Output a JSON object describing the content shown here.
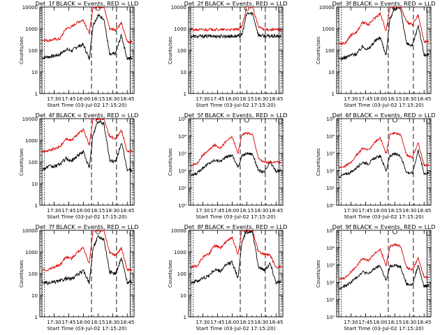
{
  "colors": {
    "events": "#000000",
    "lld": "#dd0000",
    "axis": "#000000"
  },
  "xlabel": "Start Time (03-Jul-02 17:15:20)",
  "ylabel": "Counts/sec",
  "xticks": [
    "17:30",
    "17:45",
    "18:00",
    "18:15",
    "18:30",
    "18:45"
  ],
  "chart_data": [
    {
      "type": "line",
      "title": "Det_1f BLACK = Events, RED = LLD",
      "y_scale": "log",
      "ylim": [
        1,
        10000
      ],
      "ytick_labels": [
        "1",
        "10",
        "100",
        "1000",
        "10000"
      ],
      "x": [
        "17:18",
        "17:24",
        "17:30",
        "17:36",
        "17:42",
        "17:48",
        "17:54",
        "18:00",
        "18:06",
        "18:10",
        "18:15",
        "18:21",
        "18:27",
        "18:33",
        "18:39",
        "18:45",
        "18:50"
      ],
      "series": [
        {
          "name": "BLACK = Events",
          "values": [
            45,
            50,
            55,
            65,
            110,
            95,
            150,
            180,
            40,
            1500,
            4000,
            3000,
            60,
            70,
            500,
            40,
            45
          ]
        },
        {
          "name": "RED = LLD",
          "values": [
            300,
            280,
            320,
            330,
            1000,
            1200,
            2000,
            2500,
            600,
            10000,
            10000,
            10000,
            1000,
            900,
            1800,
            250,
            250
          ]
        }
      ]
    },
    {
      "type": "line",
      "title": "Det_2f BLACK = Events, RED = LLD",
      "y_scale": "log",
      "ylim": [
        1,
        10000
      ],
      "ytick_labels": [
        "1",
        "10",
        "100",
        "1000",
        "10000"
      ],
      "x": [
        "17:18",
        "17:24",
        "17:30",
        "17:36",
        "17:42",
        "17:48",
        "17:54",
        "18:00",
        "18:06",
        "18:10",
        "18:15",
        "18:21",
        "18:27",
        "18:33",
        "18:39",
        "18:45",
        "18:50"
      ],
      "series": [
        {
          "name": "BLACK = Events",
          "values": [
            450,
            430,
            440,
            450,
            450,
            440,
            450,
            450,
            450,
            500,
            5000,
            5000,
            500,
            450,
            450,
            450,
            430
          ]
        },
        {
          "name": "RED = LLD",
          "values": [
            900,
            880,
            900,
            900,
            900,
            880,
            900,
            900,
            900,
            1200,
            10000,
            10000,
            1200,
            900,
            900,
            900,
            850
          ]
        }
      ]
    },
    {
      "type": "line",
      "title": "Det_3f BLACK = Events, RED = LLD",
      "y_scale": "log",
      "ylim": [
        1,
        10000
      ],
      "ytick_labels": [
        "1",
        "10",
        "100",
        "1000",
        "10000"
      ],
      "x": [
        "17:18",
        "17:24",
        "17:30",
        "17:36",
        "17:42",
        "17:48",
        "17:54",
        "18:00",
        "18:06",
        "18:10",
        "18:15",
        "18:21",
        "18:27",
        "18:33",
        "18:39",
        "18:45",
        "18:50"
      ],
      "series": [
        {
          "name": "BLACK = Events",
          "values": [
            40,
            45,
            60,
            70,
            150,
            110,
            250,
            400,
            60,
            3000,
            9000,
            8000,
            200,
            150,
            1500,
            60,
            60
          ]
        },
        {
          "name": "RED = LLD",
          "values": [
            200,
            210,
            500,
            700,
            2000,
            1500,
            3000,
            5000,
            800,
            10000,
            10000,
            10000,
            2000,
            1500,
            4000,
            250,
            250
          ]
        }
      ]
    },
    {
      "type": "line",
      "title": "Det_4f BLACK = Events, RED = LLD",
      "y_scale": "log",
      "ylim": [
        1,
        10000
      ],
      "ytick_labels": [
        "1",
        "10",
        "100",
        "1000",
        "10000"
      ],
      "x": [
        "17:18",
        "17:24",
        "17:30",
        "17:36",
        "17:42",
        "17:48",
        "17:54",
        "18:00",
        "18:06",
        "18:10",
        "18:15",
        "18:21",
        "18:27",
        "18:33",
        "18:39",
        "18:45",
        "18:50"
      ],
      "series": [
        {
          "name": "BLACK = Events",
          "values": [
            45,
            60,
            60,
            80,
            140,
            110,
            200,
            300,
            50,
            2000,
            7000,
            6000,
            120,
            100,
            800,
            45,
            40
          ]
        },
        {
          "name": "RED = LLD",
          "values": [
            300,
            320,
            400,
            500,
            1200,
            1000,
            2000,
            3000,
            600,
            10000,
            10000,
            10000,
            1500,
            1200,
            3000,
            300,
            300
          ]
        }
      ]
    },
    {
      "type": "line",
      "title": "Det_5f BLACK = Events, RED = LLD",
      "y_scale": "log",
      "ylim": [
        1,
        100000
      ],
      "ytick_labels": [
        "10⁰",
        "10¹",
        "10²",
        "10³",
        "10⁴",
        "10⁵"
      ],
      "x": [
        "17:18",
        "17:24",
        "17:30",
        "17:36",
        "17:42",
        "17:48",
        "17:54",
        "18:00",
        "18:06",
        "18:10",
        "18:15",
        "18:21",
        "18:27",
        "18:33",
        "18:39",
        "18:45",
        "18:50"
      ],
      "series": [
        {
          "name": "BLACK = Events",
          "values": [
            50,
            70,
            150,
            250,
            400,
            350,
            600,
            800,
            150,
            700,
            1000,
            900,
            100,
            80,
            300,
            90,
            100
          ]
        },
        {
          "name": "RED = LLD",
          "values": [
            200,
            250,
            800,
            1500,
            3000,
            2000,
            5000,
            9000,
            1000,
            12000,
            15000,
            12000,
            500,
            300,
            300,
            300,
            300
          ]
        }
      ]
    },
    {
      "type": "line",
      "title": "Det_6f BLACK = Events, RED = LLD",
      "y_scale": "log",
      "ylim": [
        1,
        100000
      ],
      "ytick_labels": [
        "10⁰",
        "10¹",
        "10²",
        "10³",
        "10⁴",
        "10⁵"
      ],
      "x": [
        "17:18",
        "17:24",
        "17:30",
        "17:36",
        "17:42",
        "17:48",
        "17:54",
        "18:00",
        "18:06",
        "18:10",
        "18:15",
        "18:21",
        "18:27",
        "18:33",
        "18:39",
        "18:45",
        "18:50"
      ],
      "series": [
        {
          "name": "BLACK = Events",
          "values": [
            45,
            60,
            80,
            150,
            300,
            250,
            500,
            700,
            100,
            700,
            900,
            700,
            80,
            70,
            1500,
            70,
            70
          ]
        },
        {
          "name": "RED = LLD",
          "values": [
            150,
            180,
            300,
            800,
            2000,
            1500,
            4000,
            8000,
            900,
            12000,
            15000,
            12000,
            800,
            600,
            4000,
            200,
            200
          ]
        }
      ]
    },
    {
      "type": "line",
      "title": "Det_7f BLACK = Events, RED = LLD",
      "y_scale": "log",
      "ylim": [
        1,
        10000
      ],
      "ytick_labels": [
        "1",
        "10",
        "100",
        "1000",
        "10000"
      ],
      "x": [
        "17:18",
        "17:24",
        "17:30",
        "17:36",
        "17:42",
        "17:48",
        "17:54",
        "18:00",
        "18:06",
        "18:10",
        "18:15",
        "18:21",
        "18:27",
        "18:33",
        "18:39",
        "18:45",
        "18:50"
      ],
      "series": [
        {
          "name": "BLACK = Events",
          "values": [
            40,
            35,
            40,
            45,
            60,
            55,
            90,
            130,
            40,
            1500,
            5000,
            4000,
            120,
            100,
            500,
            40,
            40
          ]
        },
        {
          "name": "RED = LLD",
          "values": [
            150,
            150,
            200,
            250,
            600,
            500,
            1000,
            1500,
            300,
            10000,
            10000,
            10000,
            900,
            700,
            1500,
            150,
            150
          ]
        }
      ]
    },
    {
      "type": "line",
      "title": "Det_8f BLACK = Events, RED = LLD",
      "y_scale": "log",
      "ylim": [
        1,
        10000
      ],
      "ytick_labels": [
        "1",
        "10",
        "100",
        "1000",
        "10000"
      ],
      "x": [
        "17:18",
        "17:24",
        "17:30",
        "17:36",
        "17:42",
        "17:48",
        "17:54",
        "18:00",
        "18:06",
        "18:10",
        "18:15",
        "18:21",
        "18:27",
        "18:33",
        "18:39",
        "18:45",
        "18:50"
      ],
      "series": [
        {
          "name": "BLACK = Events",
          "values": [
            40,
            45,
            60,
            80,
            150,
            130,
            250,
            350,
            60,
            3000,
            9000,
            8000,
            200,
            150,
            300,
            40,
            40
          ]
        },
        {
          "name": "RED = LLD",
          "values": [
            200,
            220,
            600,
            800,
            2000,
            1500,
            3000,
            5000,
            800,
            10000,
            10000,
            10000,
            1000,
            800,
            700,
            200,
            200
          ]
        }
      ]
    },
    {
      "type": "line",
      "title": "Det_9f BLACK = Events, RED = LLD",
      "y_scale": "log",
      "ylim": [
        1,
        100000
      ],
      "ytick_labels": [
        "10⁰",
        "10¹",
        "10²",
        "10³",
        "10⁴",
        "10⁵"
      ],
      "x": [
        "17:18",
        "17:24",
        "17:30",
        "17:36",
        "17:42",
        "17:48",
        "17:54",
        "18:00",
        "18:06",
        "18:10",
        "18:15",
        "18:21",
        "18:27",
        "18:33",
        "18:39",
        "18:45",
        "18:50"
      ],
      "series": [
        {
          "name": "BLACK = Events",
          "values": [
            40,
            60,
            100,
            200,
            400,
            300,
            600,
            900,
            120,
            800,
            1000,
            800,
            80,
            70,
            1000,
            60,
            60
          ]
        },
        {
          "name": "RED = LLD",
          "values": [
            150,
            180,
            400,
            900,
            2500,
            1800,
            4500,
            8000,
            900,
            12000,
            15000,
            12000,
            700,
            500,
            2500,
            200,
            200
          ]
        }
      ]
    }
  ]
}
